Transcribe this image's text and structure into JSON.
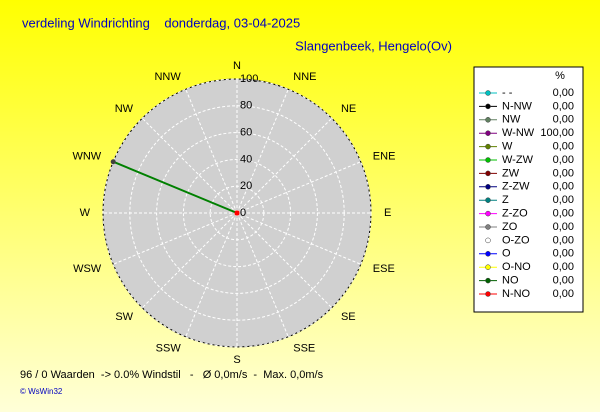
{
  "chart_data": {
    "type": "radar",
    "title": "verdeling Windrichting    donderdag, 03-04-2025",
    "subtitle": "Slangenbeek, Hengelo(Ov)",
    "categories": [
      "N",
      "NNE",
      "NE",
      "ENE",
      "E",
      "ESE",
      "SE",
      "SSE",
      "S",
      "SSW",
      "SW",
      "WSW",
      "W",
      "WNW",
      "NW",
      "NNW"
    ],
    "values": [
      0,
      0,
      0,
      0,
      0,
      0,
      0,
      0,
      0,
      0,
      0,
      0,
      0,
      100,
      0,
      0
    ],
    "color": "#008000",
    "rlim": [
      0,
      100
    ],
    "rticks": [
      0,
      20,
      40,
      60,
      80,
      100
    ],
    "legend": {
      "title": "%",
      "series": [
        {
          "name": "- -",
          "color": "#00c0c0",
          "value": 0,
          "value_label": "0,00"
        },
        {
          "name": "N-NW",
          "color": "#000000",
          "value": 0,
          "value_label": "0,00"
        },
        {
          "name": "NW",
          "color": "#608060",
          "value": 0,
          "value_label": "0,00"
        },
        {
          "name": "W-NW",
          "color": "#800080",
          "value": 100,
          "value_label": "100,00"
        },
        {
          "name": "W",
          "color": "#608000",
          "value": 0,
          "value_label": "0,00"
        },
        {
          "name": "W-ZW",
          "color": "#00c000",
          "value": 0,
          "value_label": "0,00"
        },
        {
          "name": "ZW",
          "color": "#800000",
          "value": 0,
          "value_label": "0,00"
        },
        {
          "name": "Z-ZW",
          "color": "#000080",
          "value": 0,
          "value_label": "0,00"
        },
        {
          "name": "Z",
          "color": "#008080",
          "value": 0,
          "value_label": "0,00"
        },
        {
          "name": "Z-ZO",
          "color": "#ff00ff",
          "value": 0,
          "value_label": "0,00"
        },
        {
          "name": "ZO",
          "color": "#808080",
          "value": 0,
          "value_label": "0,00"
        },
        {
          "name": "O-ZO",
          "color": "#ffffff",
          "value": 0,
          "value_label": "0,00"
        },
        {
          "name": "O",
          "color": "#0000ff",
          "value": 0,
          "value_label": "0,00"
        },
        {
          "name": "O-NO",
          "color": "#ffff00",
          "value": 0,
          "value_label": "0,00"
        },
        {
          "name": "NO",
          "color": "#006000",
          "value": 0,
          "value_label": "0,00"
        },
        {
          "name": "N-NO",
          "color": "#ff0000",
          "value": 0,
          "value_label": "0,00"
        }
      ]
    },
    "footer": "96 / 0 Waarden  -> 0.0% Windstil   -   Ø 0,0m/s  -  Max. 0,0m/s",
    "credit": "© WsWin32"
  }
}
